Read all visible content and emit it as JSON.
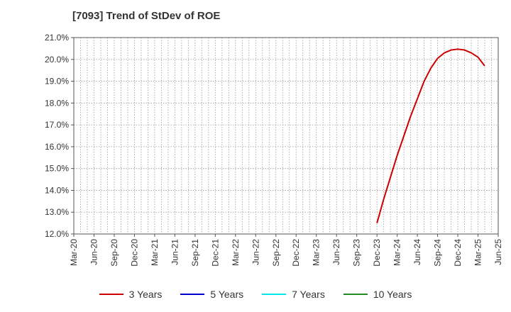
{
  "chart_data": {
    "type": "line",
    "title": "[7093]  Trend of StDev of ROE",
    "xlabel": "",
    "ylabel": "",
    "ylim": [
      12.0,
      21.0
    ],
    "y_ticks": [
      "12.0%",
      "13.0%",
      "14.0%",
      "15.0%",
      "16.0%",
      "17.0%",
      "18.0%",
      "19.0%",
      "20.0%",
      "21.0%"
    ],
    "y_tick_values": [
      12,
      13,
      14,
      15,
      16,
      17,
      18,
      19,
      20,
      21
    ],
    "x_ticks": [
      "Mar-20",
      "Jun-20",
      "Sep-20",
      "Dec-20",
      "Mar-21",
      "Jun-21",
      "Sep-21",
      "Dec-21",
      "Mar-22",
      "Jun-22",
      "Sep-22",
      "Dec-22",
      "Mar-23",
      "Jun-23",
      "Sep-23",
      "Dec-23",
      "Mar-24",
      "Jun-24",
      "Sep-24",
      "Dec-24",
      "Mar-25",
      "Jun-25"
    ],
    "grid": true,
    "legend_position": "bottom",
    "series": [
      {
        "name": "3 Years",
        "color": "#cc0000",
        "points": [
          {
            "m": 45,
            "v": 12.5
          },
          {
            "m": 46,
            "v": 13.6
          },
          {
            "m": 47,
            "v": 14.6
          },
          {
            "m": 48,
            "v": 15.6
          },
          {
            "m": 49,
            "v": 16.5
          },
          {
            "m": 50,
            "v": 17.4
          },
          {
            "m": 51,
            "v": 18.2
          },
          {
            "m": 52,
            "v": 19.0
          },
          {
            "m": 53,
            "v": 19.6
          },
          {
            "m": 54,
            "v": 20.05
          },
          {
            "m": 55,
            "v": 20.3
          },
          {
            "m": 56,
            "v": 20.43
          },
          {
            "m": 57,
            "v": 20.47
          },
          {
            "m": 58,
            "v": 20.43
          },
          {
            "m": 59,
            "v": 20.3
          },
          {
            "m": 60,
            "v": 20.1
          },
          {
            "m": 61,
            "v": 19.7
          }
        ]
      },
      {
        "name": "5 Years",
        "color": "#0000cc",
        "points": []
      },
      {
        "name": "7 Years",
        "color": "#00e5ee",
        "points": []
      },
      {
        "name": "10 Years",
        "color": "#228b22",
        "points": []
      }
    ]
  }
}
